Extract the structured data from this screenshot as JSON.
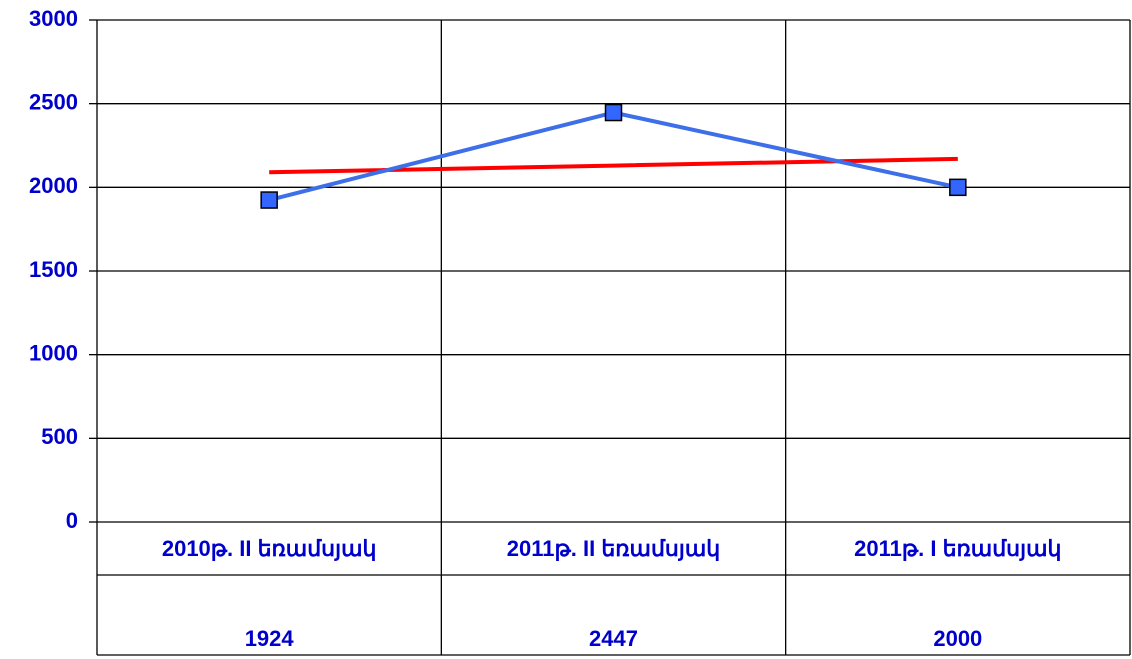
{
  "chart_data": {
    "type": "line",
    "categories": [
      "2010թ. II եռամսյակ",
      "2011թ. II եռամսյակ",
      "2011թ. I եռամսյակ"
    ],
    "series": [
      {
        "color": "#3d6fe8",
        "marker_color": "#3366ff",
        "values": [
          1924,
          2447,
          2000
        ]
      }
    ],
    "trend": {
      "color": "#ff0000",
      "values": [
        2090,
        2130,
        2170
      ]
    },
    "ylim": [
      0,
      3000
    ],
    "yticks": [
      0,
      500,
      1000,
      1500,
      2000,
      2500,
      3000
    ],
    "grid": true
  }
}
